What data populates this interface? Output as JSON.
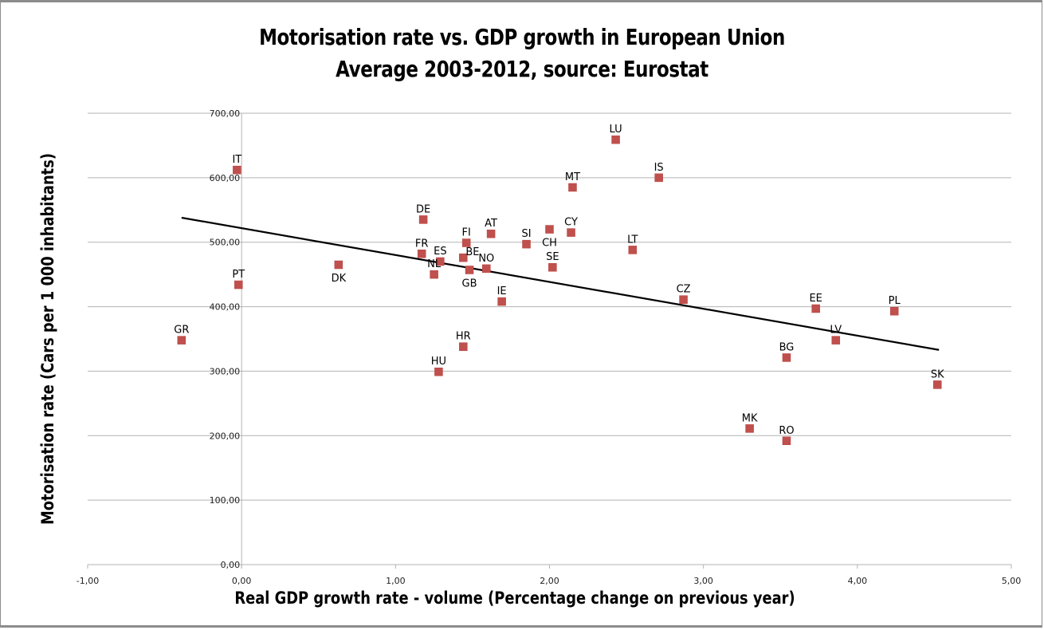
{
  "chart_data": {
    "type": "scatter",
    "title": "Motorisation rate vs. GDP growth in European Union",
    "subtitle": "Average 2003-2012, source: Eurostat",
    "xlabel": "Real GDP growth rate - volume (Percentage change on previous year)",
    "ylabel": "Motorisation rate (Cars per 1 000 inhabitants)",
    "xlim": [
      -1,
      5
    ],
    "ylim": [
      0,
      700
    ],
    "x_ticks": [
      -1,
      0,
      1,
      2,
      3,
      4,
      5
    ],
    "x_tick_labels": [
      "-1,00",
      "0,00",
      "1,00",
      "2,00",
      "3,00",
      "4,00",
      "5,00"
    ],
    "y_ticks": [
      0,
      100,
      200,
      300,
      400,
      500,
      600,
      700
    ],
    "y_tick_labels": [
      "0,00",
      "100,00",
      "200,00",
      "300,00",
      "400,00",
      "500,00",
      "600,00",
      "700,00"
    ],
    "grid": "horizontal",
    "legend": "none",
    "marker_color": "#C0504D",
    "trendline": {
      "type": "linear",
      "color": "#000000",
      "x": [
        -0.39,
        4.53
      ],
      "y": [
        538,
        333
      ]
    },
    "points": [
      {
        "label": "GR",
        "x": -0.39,
        "y": 348,
        "label_pos": "above"
      },
      {
        "label": "IT",
        "x": -0.03,
        "y": 612,
        "label_pos": "above"
      },
      {
        "label": "PT",
        "x": -0.02,
        "y": 434,
        "label_pos": "above"
      },
      {
        "label": "DK",
        "x": 0.63,
        "y": 465,
        "label_pos": "below"
      },
      {
        "label": "DE",
        "x": 1.18,
        "y": 535,
        "label_pos": "above"
      },
      {
        "label": "FR",
        "x": 1.17,
        "y": 482,
        "label_pos": "above"
      },
      {
        "label": "ES",
        "x": 1.29,
        "y": 470,
        "label_pos": "above"
      },
      {
        "label": "NL",
        "x": 1.25,
        "y": 450,
        "label_pos": "above"
      },
      {
        "label": "HU",
        "x": 1.28,
        "y": 299,
        "label_pos": "above"
      },
      {
        "label": "HR",
        "x": 1.44,
        "y": 338,
        "label_pos": "above"
      },
      {
        "label": "FI",
        "x": 1.46,
        "y": 499,
        "label_pos": "above"
      },
      {
        "label": "BE",
        "x": 1.44,
        "y": 476,
        "label_pos": "above-right"
      },
      {
        "label": "GB",
        "x": 1.48,
        "y": 457,
        "label_pos": "below"
      },
      {
        "label": "AT",
        "x": 1.62,
        "y": 513,
        "label_pos": "above"
      },
      {
        "label": "NO",
        "x": 1.59,
        "y": 459,
        "label_pos": "above"
      },
      {
        "label": "IE",
        "x": 1.69,
        "y": 408,
        "label_pos": "above"
      },
      {
        "label": "SI",
        "x": 1.85,
        "y": 497,
        "label_pos": "above"
      },
      {
        "label": "CH",
        "x": 2.0,
        "y": 520,
        "label_pos": "below"
      },
      {
        "label": "SE",
        "x": 2.02,
        "y": 461,
        "label_pos": "above"
      },
      {
        "label": "CY",
        "x": 2.14,
        "y": 515,
        "label_pos": "above"
      },
      {
        "label": "MT",
        "x": 2.15,
        "y": 585,
        "label_pos": "above"
      },
      {
        "label": "LU",
        "x": 2.43,
        "y": 659,
        "label_pos": "above"
      },
      {
        "label": "LT",
        "x": 2.54,
        "y": 488,
        "label_pos": "above"
      },
      {
        "label": "IS",
        "x": 2.71,
        "y": 600,
        "label_pos": "above"
      },
      {
        "label": "CZ",
        "x": 2.87,
        "y": 411,
        "label_pos": "above"
      },
      {
        "label": "MK",
        "x": 3.3,
        "y": 211,
        "label_pos": "above"
      },
      {
        "label": "BG",
        "x": 3.54,
        "y": 321,
        "label_pos": "above"
      },
      {
        "label": "RO",
        "x": 3.54,
        "y": 192,
        "label_pos": "above"
      },
      {
        "label": "EE",
        "x": 3.73,
        "y": 397,
        "label_pos": "above"
      },
      {
        "label": "LV",
        "x": 3.86,
        "y": 348,
        "label_pos": "above"
      },
      {
        "label": "PL",
        "x": 4.24,
        "y": 393,
        "label_pos": "above"
      },
      {
        "label": "SK",
        "x": 4.52,
        "y": 279,
        "label_pos": "above"
      }
    ]
  }
}
